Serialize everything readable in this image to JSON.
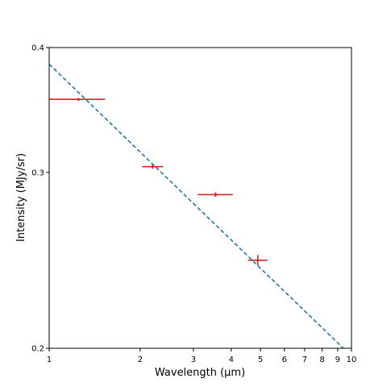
{
  "chart_data": {
    "type": "scatter",
    "title": "",
    "xlabel": "Wavelength (μm)",
    "ylabel": "Intensity (MJy/sr)",
    "xscale": "log",
    "yscale": "log",
    "xlim": [
      1,
      10
    ],
    "ylim": [
      0.2,
      0.4
    ],
    "x_ticks": [
      {
        "value": 1,
        "label": "1"
      },
      {
        "value": 2,
        "label": "2"
      },
      {
        "value": 3,
        "label": "3"
      },
      {
        "value": 4,
        "label": "4"
      },
      {
        "value": 5,
        "label": "5"
      },
      {
        "value": 6,
        "label": "6"
      },
      {
        "value": 7,
        "label": "7"
      },
      {
        "value": 8,
        "label": "8"
      },
      {
        "value": 9,
        "label": "9"
      },
      {
        "value": 10,
        "label": "10"
      }
    ],
    "y_ticks": [
      {
        "value": 0.2,
        "label": "0.2"
      },
      {
        "value": 0.3,
        "label": "0.3"
      },
      {
        "value": 0.4,
        "label": "0.4"
      }
    ],
    "grid": false,
    "series": [
      {
        "kind": "errorbar",
        "color": "#d62728",
        "points": [
          {
            "x": 1.25,
            "y": 0.355,
            "xerr": [
              0.25,
              0.28
            ],
            "yerr": 0.001
          },
          {
            "x": 2.2,
            "y": 0.304,
            "xerr": [
              0.17,
              0.18
            ],
            "yerr": 0.0015
          },
          {
            "x": 3.55,
            "y": 0.285,
            "xerr": [
              0.45,
              0.5
            ],
            "yerr": 0.0015
          },
          {
            "x": 4.9,
            "y": 0.245,
            "xerr": [
              0.35,
              0.37
            ],
            "yerr": 0.003
          }
        ]
      },
      {
        "kind": "fit-line",
        "style": "dashed",
        "color": "#1f77b4",
        "x": [
          1,
          9.4
        ],
        "y": [
          0.385,
          0.2
        ]
      }
    ]
  }
}
